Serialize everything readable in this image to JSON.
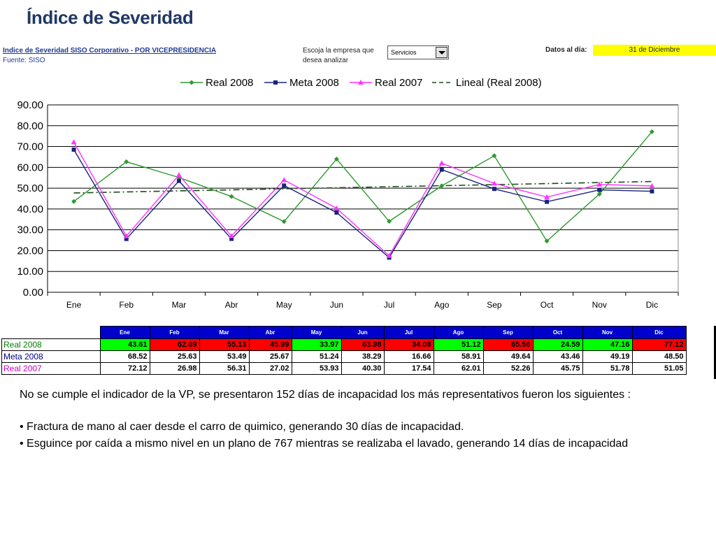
{
  "slide": {
    "title": "Índice de Severidad"
  },
  "report": {
    "heading": "Indice de Severidad SISO Corporativo - POR VICEPRESIDENCIA",
    "source": "Fuente: SISO",
    "company_prompt_line1": "Escoja la empresa que",
    "company_prompt_line2": "desea analizar",
    "company_selected": "Servicios",
    "date_label": "Datos al día:",
    "date_value": "31 de Diciembre"
  },
  "chart_data": {
    "type": "line",
    "categories": [
      "Ene",
      "Feb",
      "Mar",
      "Abr",
      "May",
      "Jun",
      "Jul",
      "Ago",
      "Sep",
      "Oct",
      "Nov",
      "Dic"
    ],
    "ylim": [
      0,
      90
    ],
    "yticks": [
      "0.00",
      "10.00",
      "20.00",
      "30.00",
      "40.00",
      "50.00",
      "60.00",
      "70.00",
      "80.00",
      "90.00"
    ],
    "grid": true,
    "legend_position": "top",
    "series": [
      {
        "name": "Real 2008",
        "color": "#2e9a2e",
        "marker": "diamond",
        "values": [
          43.61,
          62.69,
          55.13,
          45.99,
          33.97,
          63.98,
          34.08,
          51.12,
          65.56,
          24.59,
          47.16,
          77.12
        ]
      },
      {
        "name": "Meta 2008",
        "color": "#1a237e",
        "marker": "square",
        "values": [
          68.52,
          25.63,
          53.49,
          25.67,
          51.24,
          38.29,
          16.66,
          58.91,
          49.64,
          43.46,
          49.19,
          48.5
        ]
      },
      {
        "name": "Real 2007",
        "color": "#ff33ff",
        "marker": "triangle",
        "values": [
          72.12,
          26.98,
          56.31,
          27.02,
          53.93,
          40.3,
          17.54,
          62.01,
          52.26,
          45.75,
          51.78,
          51.05
        ]
      },
      {
        "name": "Lineal (Real 2008)",
        "color": "#1b4d1b",
        "marker": "none",
        "dashed": true,
        "values": [
          47.7,
          48.2,
          48.7,
          49.2,
          49.7,
          50.2,
          50.7,
          51.2,
          51.7,
          52.2,
          52.7,
          53.2
        ]
      }
    ]
  },
  "table": {
    "months": [
      "Ene",
      "Feb",
      "Mar",
      "Abr",
      "May",
      "Jun",
      "Jul",
      "Ago",
      "Sep",
      "Oct",
      "Nov",
      "Dic"
    ],
    "rows": [
      {
        "label": "Real 2008",
        "values": [
          "43.61",
          "62.69",
          "55.13",
          "45.99",
          "33.97",
          "63.98",
          "34.08",
          "51.12",
          "65.56",
          "24.59",
          "47.16",
          "77.12"
        ],
        "status": [
          "green",
          "red",
          "red",
          "red",
          "green",
          "red",
          "red",
          "green",
          "red",
          "green",
          "green",
          "red"
        ]
      },
      {
        "label": "Meta 2008",
        "values": [
          "68.52",
          "25.63",
          "53.49",
          "25.67",
          "51.24",
          "38.29",
          "16.66",
          "58.91",
          "49.64",
          "43.46",
          "49.19",
          "48.50"
        ]
      },
      {
        "label": "Real 2007",
        "values": [
          "72.12",
          "26.98",
          "56.31",
          "27.02",
          "53.93",
          "40.30",
          "17.54",
          "62.01",
          "52.26",
          "45.75",
          "51.78",
          "51.05"
        ]
      }
    ]
  },
  "notes": {
    "intro": "No se cumple el indicador de la VP, se presentaron 152 días de incapacidad los más representativos fueron los siguientes :",
    "bullets": [
      "•  Fractura de mano al caer desde el carro de quimico,  generando 30 días de incapacidad.",
      "•  Esguince por caída a mismo nivel en un plano de 767 mientras se realizaba el lavado, generando 14 días de incapacidad"
    ]
  },
  "colors": {
    "title": "#1f3864",
    "header_bg": "#0000cc",
    "over_target": "#ff0000",
    "under_target": "#00ff00",
    "date_bg": "#ffff00"
  }
}
